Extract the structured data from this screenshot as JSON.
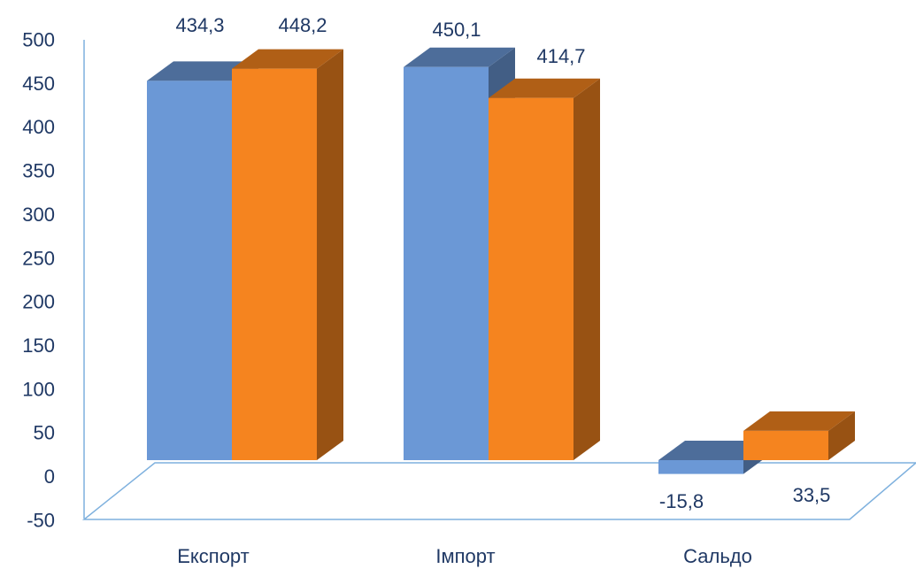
{
  "chart_data": {
    "type": "bar",
    "title": "",
    "xlabel": "",
    "ylabel": "",
    "ylim": [
      -50,
      500
    ],
    "y_ticks": [
      500,
      450,
      400,
      350,
      300,
      250,
      200,
      150,
      100,
      50,
      0,
      -50
    ],
    "categories": [
      "Експорт",
      "Імпорт",
      "Сальдо"
    ],
    "series": [
      {
        "values": [
          434.3,
          450.1,
          -15.8
        ],
        "labels": [
          "434,3",
          "450,1",
          "-15,8"
        ],
        "color": "#6b98d6"
      },
      {
        "values": [
          448.2,
          414.7,
          33.5
        ],
        "labels": [
          "448,2",
          "414,7",
          "33,5"
        ],
        "color": "#f5841f"
      }
    ],
    "grid": false,
    "legend": "none",
    "style": "3d-column"
  }
}
